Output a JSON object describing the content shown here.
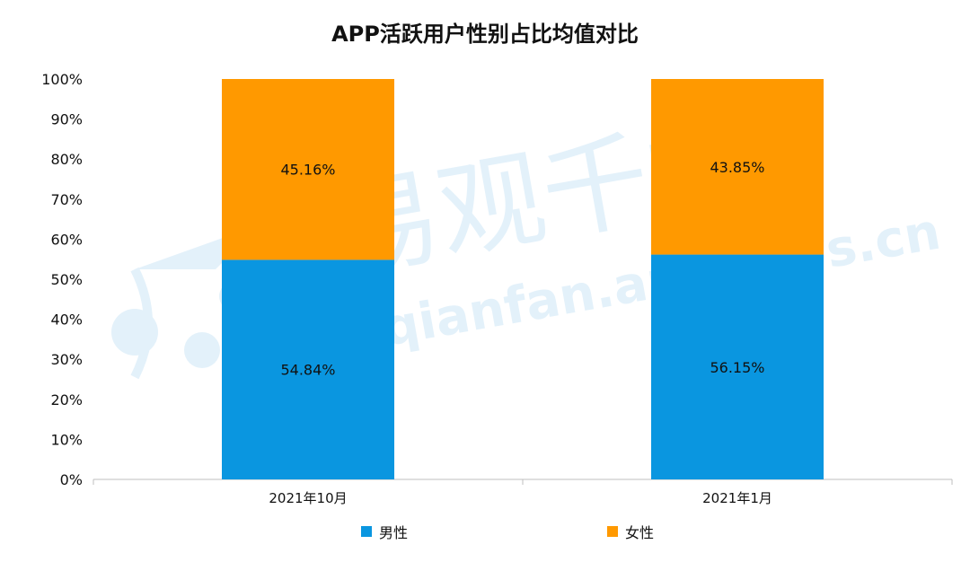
{
  "chart_data": {
    "type": "bar",
    "stacked": true,
    "title": "APP活跃用户性别占比均值对比",
    "categories": [
      "2021年10月",
      "2021年1月"
    ],
    "series": [
      {
        "name": "男性",
        "values": [
          54.84,
          56.15
        ],
        "labels": [
          "54.84%",
          "56.15%"
        ],
        "color": "#0A96E0"
      },
      {
        "name": "女性",
        "values": [
          45.16,
          43.85
        ],
        "labels": [
          "45.16%",
          "43.85%"
        ],
        "color": "#FF9900"
      }
    ],
    "y_ticks": [
      "0%",
      "10%",
      "20%",
      "30%",
      "40%",
      "50%",
      "60%",
      "70%",
      "80%",
      "90%",
      "100%"
    ],
    "ylim": [
      0,
      100
    ],
    "grid": false,
    "legend_position": "bottom"
  },
  "watermark": {
    "text_cn": "易观千帆",
    "text_en": "qianfan.analysys.cn",
    "color": "#E3F1FA"
  }
}
